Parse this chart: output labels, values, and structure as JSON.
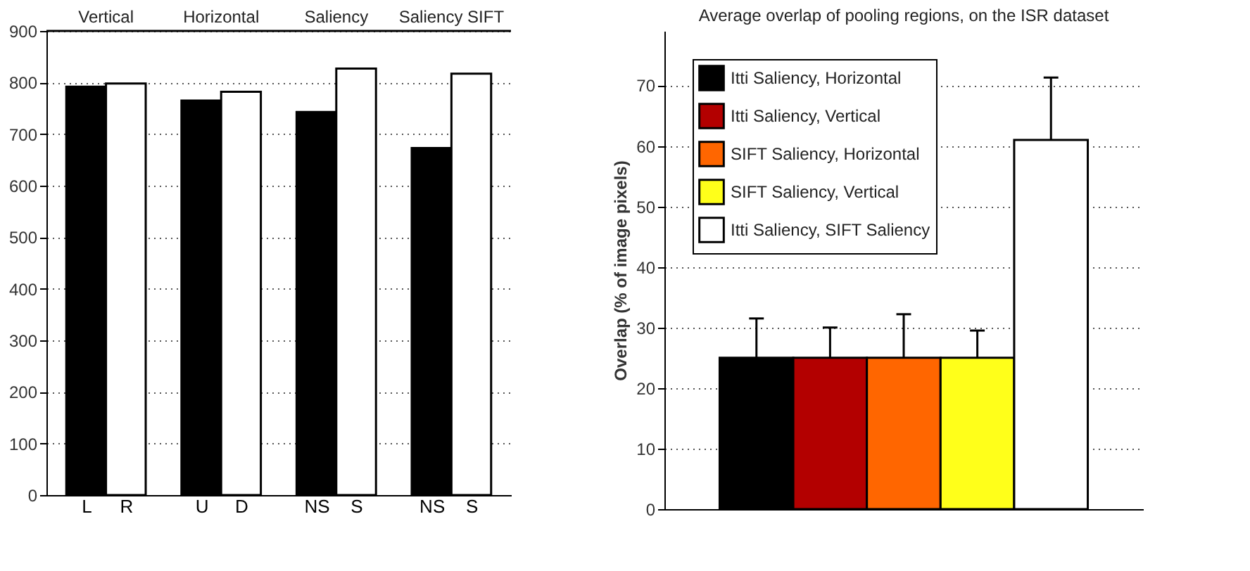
{
  "chart_data": [
    {
      "type": "bar",
      "categories": [
        "L",
        "R",
        "U",
        "D",
        "NS",
        "S",
        "NS",
        "S"
      ],
      "values": [
        792,
        798,
        765,
        782,
        743,
        827,
        673,
        817
      ],
      "colors": [
        "#000000",
        "#ffffff",
        "#000000",
        "#ffffff",
        "#000000",
        "#ffffff",
        "#000000",
        "#ffffff"
      ],
      "ylim": [
        0,
        900
      ],
      "yticks": [
        0,
        100,
        200,
        300,
        400,
        500,
        600,
        700,
        800,
        900
      ],
      "grid": "y",
      "annotations": [
        "Vertical",
        "Horizontal",
        "Saliency",
        "Saliency SIFT"
      ]
    },
    {
      "type": "bar",
      "title": "Average overlap of pooling regions, on the ISR dataset",
      "ylabel": "Overlap (% of image pixels)",
      "categories": [
        null,
        null,
        null,
        null,
        null
      ],
      "series": [
        {
          "name": "Itti Saliency, Horizontal",
          "color": "#000000",
          "values": [
            25,
            null,
            null,
            null,
            null
          ],
          "errors": [
            [
              25,
              31.5
            ],
            null,
            null,
            null,
            null
          ]
        },
        {
          "name": "Itti Saliency, Vertical",
          "color": "#b30000",
          "values": [
            null,
            25,
            null,
            null,
            null
          ],
          "errors": [
            null,
            [
              25,
              30
            ],
            null,
            null,
            null
          ]
        },
        {
          "name": "SIFT Saliency, Horizontal",
          "color": "#ff6600",
          "values": [
            null,
            null,
            25,
            null,
            null
          ],
          "errors": [
            null,
            null,
            [
              25,
              32.2
            ],
            null,
            null
          ]
        },
        {
          "name": "SIFT Saliency, Vertical",
          "color": "#ffff1a",
          "values": [
            null,
            null,
            null,
            25,
            null
          ],
          "errors": [
            null,
            null,
            null,
            [
              25,
              29.5
            ],
            null
          ]
        },
        {
          "name": "Itti Saliency, SIFT Saliency",
          "color": "#ffffff",
          "values": [
            null,
            null,
            null,
            null,
            61
          ],
          "errors": [
            null,
            null,
            null,
            null,
            [
              61,
              71.3
            ]
          ]
        }
      ],
      "ylim": [
        0,
        79
      ],
      "yticks": [
        0,
        10,
        20,
        30,
        40,
        50,
        60,
        70
      ],
      "grid": "y",
      "legend": "top left"
    }
  ]
}
